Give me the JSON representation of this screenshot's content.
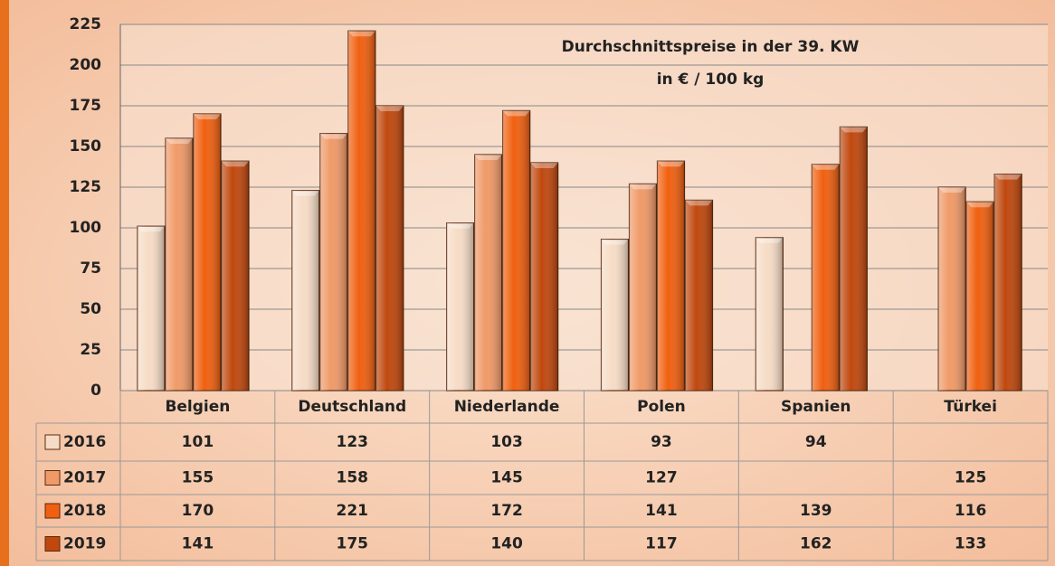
{
  "chart_data": {
    "type": "bar",
    "title": "Durchschnittspreise in der 39. KW",
    "subtitle": "in € / 100 kg",
    "categories": [
      "Belgien",
      "Deutschland",
      "Niederlande",
      "Polen",
      "Spanien",
      "Türkei"
    ],
    "series": [
      {
        "name": "2016",
        "color": "#f6dcc6",
        "values": [
          101,
          123,
          103,
          93,
          94,
          null
        ]
      },
      {
        "name": "2017",
        "color": "#f09a68",
        "values": [
          155,
          158,
          145,
          127,
          null,
          125
        ]
      },
      {
        "name": "2018",
        "color": "#f06010",
        "values": [
          170,
          221,
          172,
          141,
          139,
          116
        ]
      },
      {
        "name": "2019",
        "color": "#c0480e",
        "values": [
          141,
          175,
          140,
          117,
          162,
          133
        ]
      }
    ],
    "ylim": [
      0,
      225
    ],
    "yticks": [
      0,
      25,
      50,
      75,
      100,
      125,
      150,
      175,
      200,
      225
    ],
    "grid": true
  }
}
